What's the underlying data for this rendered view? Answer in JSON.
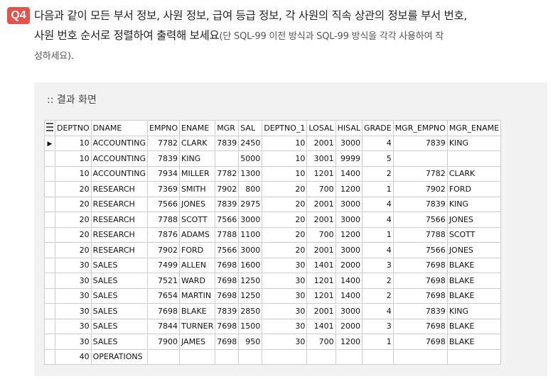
{
  "question": {
    "badge": "Q4",
    "line1": "다음과 같이 모든 부서 정보, 사원 정보, 급여 등급 정보, 각 사원의 직속 상관의 정보를 부서 번호,",
    "line2_main": "사원 번호 순서로 정렬하여 출력해 보세요",
    "line2_note": "(단 SQL-99 이전 방식과 SQL-99 방식을 각각 사용하여 작",
    "line3": "성하세요)."
  },
  "result": {
    "caption": ":: 결과 화면",
    "columns": [
      "DEPTNO",
      "DNAME",
      "EMPNO",
      "ENAME",
      "MGR",
      "SAL",
      "DEPTNO_1",
      "LOSAL",
      "HISAL",
      "GRADE",
      "MGR_EMPNO",
      "MGR_ENAME"
    ],
    "rows": [
      [
        "10",
        "ACCOUNTING",
        "7782",
        "CLARK",
        "7839",
        "2450",
        "10",
        "2001",
        "3000",
        "4",
        "7839",
        "KING"
      ],
      [
        "10",
        "ACCOUNTING",
        "7839",
        "KING",
        "",
        "5000",
        "10",
        "3001",
        "9999",
        "5",
        "",
        ""
      ],
      [
        "10",
        "ACCOUNTING",
        "7934",
        "MILLER",
        "7782",
        "1300",
        "10",
        "1201",
        "1400",
        "2",
        "7782",
        "CLARK"
      ],
      [
        "20",
        "RESEARCH",
        "7369",
        "SMITH",
        "7902",
        "800",
        "20",
        "700",
        "1200",
        "1",
        "7902",
        "FORD"
      ],
      [
        "20",
        "RESEARCH",
        "7566",
        "JONES",
        "7839",
        "2975",
        "20",
        "2001",
        "3000",
        "4",
        "7839",
        "KING"
      ],
      [
        "20",
        "RESEARCH",
        "7788",
        "SCOTT",
        "7566",
        "3000",
        "20",
        "2001",
        "3000",
        "4",
        "7566",
        "JONES"
      ],
      [
        "20",
        "RESEARCH",
        "7876",
        "ADAMS",
        "7788",
        "1100",
        "20",
        "700",
        "1200",
        "1",
        "7788",
        "SCOTT"
      ],
      [
        "20",
        "RESEARCH",
        "7902",
        "FORD",
        "7566",
        "3000",
        "20",
        "2001",
        "3000",
        "4",
        "7566",
        "JONES"
      ],
      [
        "30",
        "SALES",
        "7499",
        "ALLEN",
        "7698",
        "1600",
        "30",
        "1401",
        "2000",
        "3",
        "7698",
        "BLAKE"
      ],
      [
        "30",
        "SALES",
        "7521",
        "WARD",
        "7698",
        "1250",
        "30",
        "1201",
        "1400",
        "2",
        "7698",
        "BLAKE"
      ],
      [
        "30",
        "SALES",
        "7654",
        "MARTIN",
        "7698",
        "1250",
        "30",
        "1201",
        "1400",
        "2",
        "7698",
        "BLAKE"
      ],
      [
        "30",
        "SALES",
        "7698",
        "BLAKE",
        "7839",
        "2850",
        "30",
        "2001",
        "3000",
        "4",
        "7839",
        "KING"
      ],
      [
        "30",
        "SALES",
        "7844",
        "TURNER",
        "7698",
        "1500",
        "30",
        "1401",
        "2000",
        "3",
        "7698",
        "BLAKE"
      ],
      [
        "30",
        "SALES",
        "7900",
        "JAMES",
        "7698",
        "950",
        "30",
        "700",
        "1200",
        "1",
        "7698",
        "BLAKE"
      ],
      [
        "40",
        "OPERATIONS",
        "",
        "",
        "",
        "",
        "",
        "",
        "",
        "",
        "",
        ""
      ]
    ],
    "current_row_index": 0
  },
  "icons": {
    "grid_menu": "grid-menu-icon",
    "current_row": "current-row-triangle-icon"
  }
}
